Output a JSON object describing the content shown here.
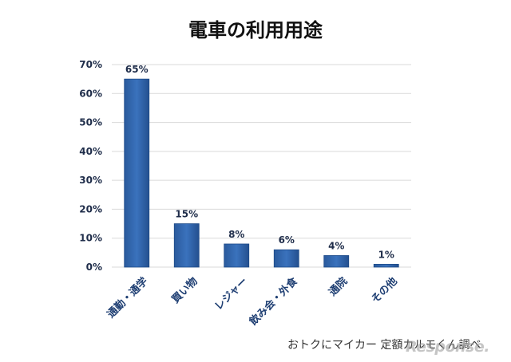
{
  "chart_data": {
    "type": "bar",
    "title": "電車の利用用途",
    "categories": [
      "通勤・通学",
      "買い物",
      "レジャー",
      "飲み会・外食",
      "通院",
      "その他"
    ],
    "values": [
      65,
      15,
      8,
      6,
      4,
      1
    ],
    "data_labels": [
      "65%",
      "15%",
      "8%",
      "6%",
      "4%",
      "1%"
    ],
    "ylim": [
      0,
      70
    ],
    "yticks": [
      0,
      10,
      20,
      30,
      40,
      50,
      60,
      70
    ],
    "ytick_labels": [
      "0%",
      "10%",
      "20%",
      "30%",
      "40%",
      "50%",
      "60%",
      "70%"
    ],
    "xlabel": "",
    "ylabel": "",
    "grid": true,
    "bar_color": "#2e63a8",
    "bar_color_dark": "#1d4a88",
    "grid_color": "#d9d9d9"
  },
  "source_note": "おトクにマイカー 定額カルモくん調べ",
  "watermark": "Response."
}
